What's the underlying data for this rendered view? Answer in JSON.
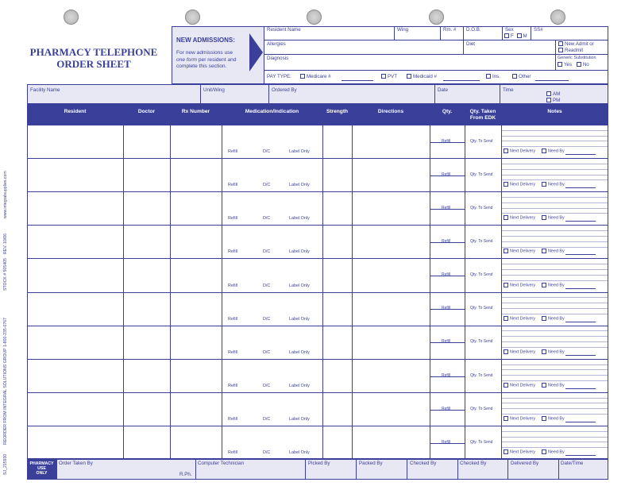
{
  "form_title": [
    "PHARMACY TELEPHONE",
    "ORDER SHEET"
  ],
  "new_admissions": {
    "title": "NEW ADMISSIONS:",
    "line1": "For new admissions use",
    "line2_em": "one form",
    "line2_rest": " per resident and",
    "line3": "complete this section."
  },
  "resident_info": {
    "resident_name": "Resident Name",
    "wing": "Wing",
    "rm": "Rm. #",
    "dob": "D.O.B.",
    "sex": "Sex",
    "ssn": "SS#",
    "sex_f": "F",
    "sex_m": "M",
    "allergies": "Allergies",
    "diet": "Diet",
    "new_admit": "New Admit or",
    "readmit": "Readmit",
    "diagnosis": "Diagnosis",
    "generic_sub": "Generic Substitution",
    "yes": "Yes",
    "no": "No",
    "pay_type": "PAY TYPE:",
    "medicare": "Medicare #",
    "pvt": "PVT",
    "medicaid": "Medicaid #",
    "ins": "Ins.",
    "other": "Other"
  },
  "facility_row": {
    "facility_name": "Facility Name",
    "unit_wing": "Unit/Wing",
    "ordered_by": "Ordered By",
    "date": "Date",
    "time": "Time",
    "am": "AM",
    "pm": "PM"
  },
  "columns": [
    "Resident",
    "Doctor",
    "Rx Number",
    "Medication/Indication",
    "Strength",
    "Directions",
    "Qty.",
    "Qty. Taken From EDK",
    "Notes"
  ],
  "row_labels": {
    "refill": "Refill",
    "dc": "D/C",
    "label_only": "Label Only",
    "qty_refill": "Refill",
    "qty_to_send": "Qty. To Send",
    "next_delivery": "Next Delivery",
    "need_by": "Need By"
  },
  "footer": {
    "pharmacy": "PHARMACY",
    "use": "USE",
    "only": "ONLY",
    "order_taken_by": "Order Taken By",
    "rph": "R.Ph.",
    "computer_technician": "Computer Technician",
    "picked_by": "Picked By",
    "packed_by": "Packed By",
    "checked_by_1": "Checked By",
    "checked_by_2": "Checked By",
    "delivered_by": "Delivered By",
    "date_time": "Date/Time"
  },
  "side_text": {
    "order_code": "SJ_215930",
    "reorder": "REORDER FROM INTEGRAL SOLUTIONS GROUP  1-800-235-0767",
    "stock": "STOCK # 505405",
    "rev": "REV. 10/06",
    "website": "www.integralsupplies.com"
  },
  "colors": {
    "brand": "#3a3f9a",
    "panel": "#e8e8f4"
  }
}
